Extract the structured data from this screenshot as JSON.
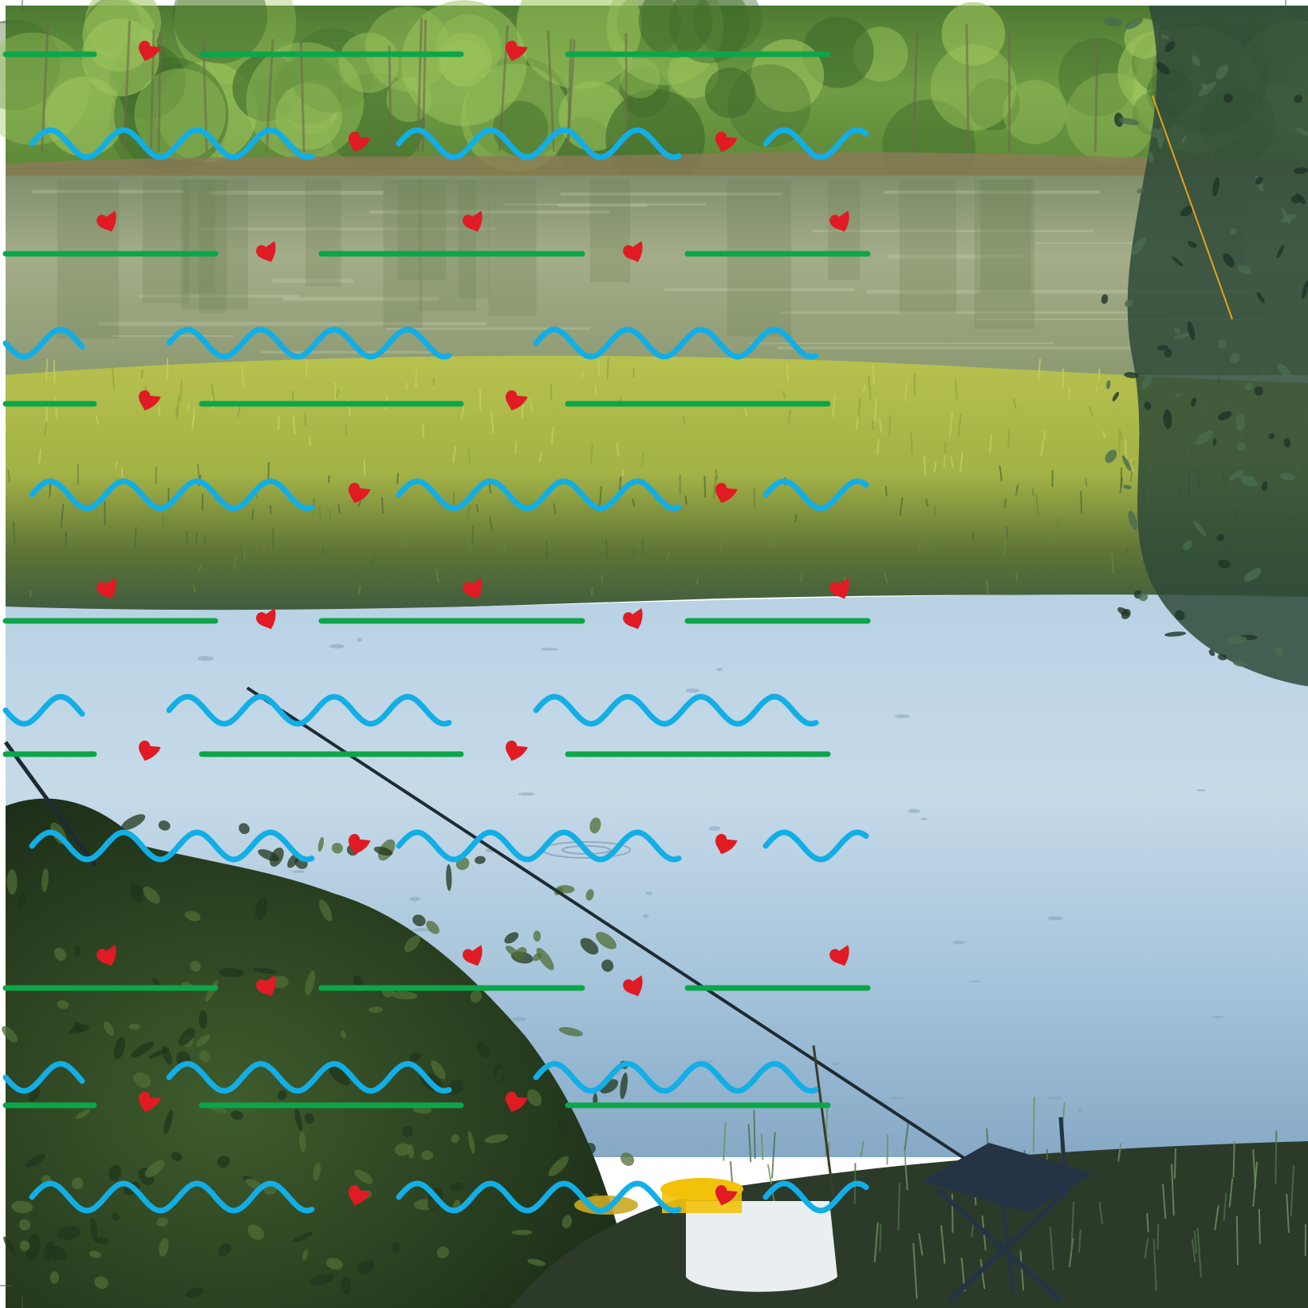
{
  "scene": {
    "description_name": "river-fishing-photo",
    "colors": {
      "sky_trees_top": "#5e8c3c",
      "tree_canopy_dark": "#3f6b2a",
      "tree_canopy_light": "#9cc45c",
      "far_bank_soil": "#8c7a58",
      "river_far": "#8f9c78",
      "river_far_highlight": "#c7cfb0",
      "meadow_light": "#b9c450",
      "meadow_dark": "#5f7a35",
      "meadow_shadow": "#3a5a3c",
      "lake_light": "#c8dbe8",
      "lake_mid": "#9fc0d8",
      "lake_dark": "#7ea3c4",
      "bush_dark": "#23381f",
      "bush_mid": "#3a5a2c",
      "rod_color": "#1d2b33",
      "willow_dark": "#2e4a38",
      "chair_color": "#243445",
      "bucket_white": "#e9eef0",
      "bucket_lid": "#f2c20a",
      "shore_ground": "#2c3a2a",
      "line_orange": "#e6a21b"
    }
  },
  "pattern": {
    "green_line_color": "#0ca64a",
    "wave_color": "#12aee6",
    "heart_color": "#e01b24",
    "row_count": 12
  },
  "crop_marks": {
    "color": "#555555"
  }
}
